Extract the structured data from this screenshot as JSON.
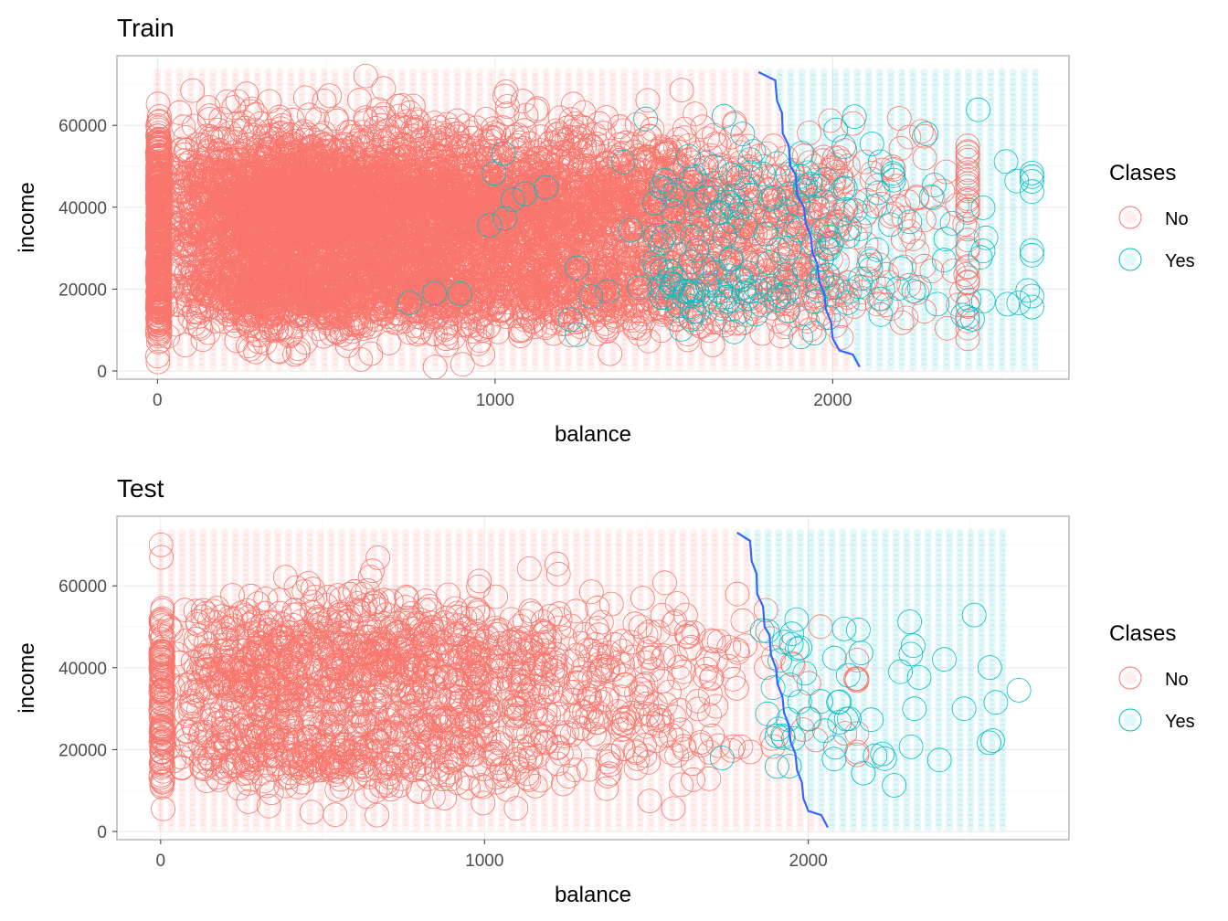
{
  "legend": {
    "title": "Clases",
    "entries": [
      {
        "label": "No",
        "color": "#F8766D"
      },
      {
        "label": "Yes",
        "color": "#00BFC4"
      }
    ]
  },
  "colors": {
    "no": "#F8766D",
    "yes": "#00BFC4",
    "boundary": "#3366FF",
    "background": "#FFFFFF",
    "grid": "#EBEBEB"
  },
  "chart_data": [
    {
      "type": "scatter",
      "title": "Train",
      "xlabel": "balance",
      "ylabel": "income",
      "xlim": [
        -120,
        2700
      ],
      "ylim": [
        -2000,
        77000
      ],
      "x_ticks": [
        "0",
        "1000",
        "2000"
      ],
      "x_tick_values": [
        0,
        1000,
        2000
      ],
      "y_ticks": [
        "0",
        "20000",
        "40000",
        "60000"
      ],
      "y_tick_values": [
        0,
        20000,
        40000,
        60000
      ],
      "grid": true,
      "legend_position": "right",
      "background_grid": {
        "x_range": [
          0,
          2600
        ],
        "y_range": [
          1000,
          73000
        ],
        "columns": 80,
        "rows": 60
      },
      "decision_boundary": [
        [
          1780,
          73000
        ],
        [
          1830,
          71000
        ],
        [
          1835,
          66000
        ],
        [
          1850,
          63000
        ],
        [
          1852,
          58000
        ],
        [
          1870,
          55000
        ],
        [
          1875,
          50000
        ],
        [
          1890,
          48000
        ],
        [
          1895,
          43000
        ],
        [
          1915,
          40000
        ],
        [
          1920,
          36000
        ],
        [
          1935,
          33000
        ],
        [
          1940,
          29000
        ],
        [
          1955,
          26000
        ],
        [
          1960,
          22000
        ],
        [
          1975,
          19000
        ],
        [
          1980,
          15000
        ],
        [
          1995,
          12000
        ],
        [
          2000,
          8000
        ],
        [
          2020,
          5000
        ],
        [
          2060,
          4000
        ],
        [
          2080,
          1000
        ]
      ],
      "series": [
        {
          "name": "No",
          "count": 7200,
          "balance_range": [
            0,
            2400
          ],
          "income_range": [
            1000,
            73000
          ]
        },
        {
          "name": "Yes",
          "count": 230,
          "balance_range": [
            650,
            2590
          ],
          "income_range": [
            8000,
            67000
          ]
        }
      ]
    },
    {
      "type": "scatter",
      "title": "Test",
      "xlabel": "balance",
      "ylabel": "income",
      "xlim": [
        -135,
        2805
      ],
      "ylim": [
        -2000,
        77000
      ],
      "x_ticks": [
        "0",
        "1000",
        "2000"
      ],
      "x_tick_values": [
        0,
        1000,
        2000
      ],
      "y_ticks": [
        "0",
        "20000",
        "40000",
        "60000"
      ],
      "y_tick_values": [
        0,
        20000,
        40000,
        60000
      ],
      "grid": true,
      "legend_position": "right",
      "background_grid": {
        "x_range": [
          0,
          2600
        ],
        "y_range": [
          1000,
          73000
        ],
        "columns": 80,
        "rows": 60
      },
      "decision_boundary": [
        [
          1780,
          73000
        ],
        [
          1820,
          71000
        ],
        [
          1825,
          66000
        ],
        [
          1840,
          63000
        ],
        [
          1842,
          58000
        ],
        [
          1860,
          55000
        ],
        [
          1865,
          50000
        ],
        [
          1880,
          48000
        ],
        [
          1885,
          43000
        ],
        [
          1900,
          40000
        ],
        [
          1905,
          36000
        ],
        [
          1920,
          33000
        ],
        [
          1925,
          29000
        ],
        [
          1940,
          26000
        ],
        [
          1945,
          22000
        ],
        [
          1960,
          19000
        ],
        [
          1965,
          15000
        ],
        [
          1980,
          12000
        ],
        [
          1985,
          8000
        ],
        [
          2000,
          5000
        ],
        [
          2040,
          4000
        ],
        [
          2060,
          1000
        ]
      ],
      "series": [
        {
          "name": "No",
          "count": 1800,
          "balance_range": [
            0,
            2150
          ],
          "income_range": [
            4000,
            70000
          ]
        },
        {
          "name": "Yes",
          "count": 60,
          "balance_range": [
            1280,
            2650
          ],
          "income_range": [
            9000,
            64000
          ]
        }
      ]
    }
  ]
}
